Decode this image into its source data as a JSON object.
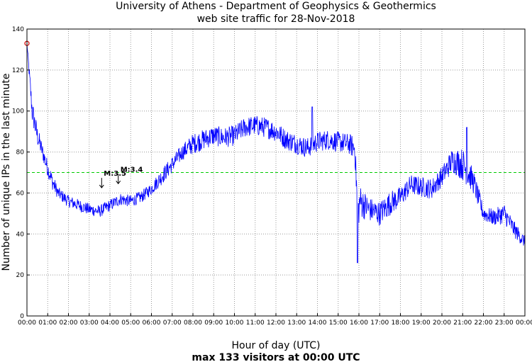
{
  "chart_data": {
    "type": "line",
    "title": "University of Athens - Department of Geophysics & Geothermics",
    "subtitle": "web site traffic for 28-Nov-2018",
    "xlabel": "Hour of day (UTC)",
    "ylabel": "Number of unique IPs in the last minute",
    "footer": "max 133 visitors at 00:00 UTC",
    "xlim": [
      0,
      24
    ],
    "ylim": [
      0,
      140
    ],
    "x_ticks": [
      "00:00",
      "01:00",
      "02:00",
      "03:00",
      "04:00",
      "05:00",
      "06:00",
      "07:00",
      "08:00",
      "09:00",
      "10:00",
      "11:00",
      "12:00",
      "13:00",
      "14:00",
      "15:00",
      "16:00",
      "17:00",
      "18:00",
      "19:00",
      "20:00",
      "21:00",
      "22:00",
      "23:00",
      "00:00"
    ],
    "y_ticks": [
      0,
      20,
      40,
      60,
      80,
      100,
      120,
      140
    ],
    "grid": true,
    "line_color": "#0000ff",
    "reference_line": {
      "y": 70,
      "color": "#00cc00"
    },
    "max_marker": {
      "x": 0,
      "y": 133,
      "color": "#cc0000"
    },
    "annotations": [
      {
        "text": "M:3.5",
        "x": 3.6,
        "y": 66
      },
      {
        "text": "M:3.4",
        "x": 4.4,
        "y": 68
      }
    ],
    "series": [
      {
        "x": [
          0,
          0.1,
          0.25,
          0.5,
          0.75,
          1.0,
          1.25,
          1.5,
          1.75,
          2.0,
          2.5,
          3.0,
          3.5,
          4.0,
          4.5,
          5.0,
          5.5,
          6.0,
          6.5,
          7.0,
          7.5,
          8.0,
          8.5,
          9.0,
          9.5,
          10.0,
          10.5,
          11.0,
          11.5,
          12.0,
          12.5,
          13.0,
          13.5,
          14.0,
          14.5,
          15.0,
          15.5,
          15.8,
          15.95,
          16.05,
          16.5,
          17.0,
          17.5,
          18.0,
          18.5,
          19.0,
          19.5,
          20.0,
          20.5,
          21.0,
          21.5,
          22.0,
          22.5,
          23.0,
          23.5,
          24.0
        ],
        "y": [
          133,
          120,
          100,
          88,
          80,
          72,
          65,
          60,
          58,
          56,
          54,
          52,
          51,
          54,
          57,
          56,
          58,
          62,
          68,
          74,
          80,
          84,
          86,
          88,
          87,
          88,
          92,
          93,
          92,
          90,
          86,
          84,
          82,
          85,
          86,
          85,
          84,
          82,
          50,
          56,
          52,
          50,
          55,
          58,
          64,
          63,
          62,
          68,
          76,
          74,
          66,
          50,
          48,
          50,
          42,
          36
        ],
        "noise": [
          0,
          3,
          6,
          5,
          4,
          4,
          4,
          3,
          3,
          3,
          3,
          3,
          3,
          3,
          3,
          3,
          3,
          3,
          4,
          4,
          4,
          5,
          5,
          5,
          5,
          5,
          5,
          5,
          5,
          5,
          5,
          5,
          5,
          5,
          5,
          5,
          5,
          6,
          9,
          8,
          6,
          6,
          6,
          5,
          5,
          5,
          5,
          5,
          6,
          8,
          6,
          4,
          4,
          5,
          4,
          3
        ]
      }
    ]
  }
}
